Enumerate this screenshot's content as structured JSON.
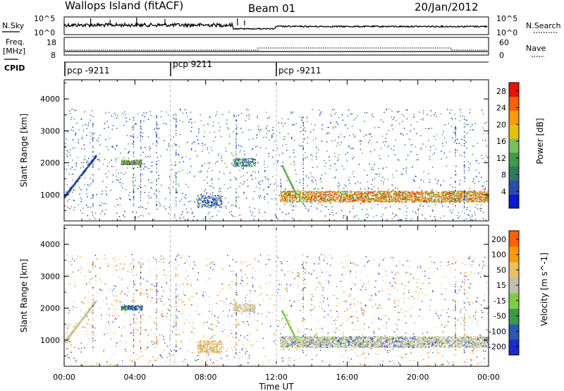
{
  "header": {
    "station": "Wallops Island (fitACF)",
    "beam": "Beam 01",
    "date": "20/Jan/2012"
  },
  "nsky": {
    "label": "N.Sky",
    "ticks": [
      "10^5",
      "10^0"
    ],
    "right_label": "N.Search",
    "right_ticks": [
      "10^5",
      "10^0"
    ]
  },
  "freq": {
    "label_lines": [
      "Freq.",
      "[MHz]"
    ],
    "ticks": [
      "18",
      "8"
    ],
    "right_label": "Nave",
    "right_ticks": [
      "60",
      "0"
    ]
  },
  "cpid": {
    "label": "CPID",
    "segments": [
      {
        "start": 0,
        "label": "pcp -9211"
      },
      {
        "start": 6,
        "label": "pcp 9211"
      },
      {
        "start": 12,
        "label": "pcp -9211"
      }
    ]
  },
  "colors": {
    "power_scale": [
      "#0a18d8",
      "#2a4eb0",
      "#2f7a5a",
      "#3f9a4a",
      "#7ac05a",
      "#e8c000",
      "#ff9a00",
      "#ff6000",
      "#ee1000"
    ],
    "velocity_scale": [
      "#1a2ad0",
      "#2a5ab0",
      "#3a9a48",
      "#7ad040",
      "#c0c0b0",
      "#e8c060",
      "#ff9a00",
      "#ff6000",
      "#e01000"
    ]
  },
  "chart_data": [
    {
      "type": "heatmap",
      "name_shown": "",
      "xlabel": "",
      "ylabel": "Slant Range [km]",
      "x_range_hours": [
        0,
        24
      ],
      "ylim": [
        180,
        4600
      ],
      "yticks": [
        "1000",
        "2000",
        "3000",
        "4000"
      ],
      "colorbar_label": "Power [dB]",
      "colorbar_ticks": [
        "4",
        "8",
        "12",
        "16",
        "20",
        "24",
        "28"
      ],
      "colorbar_range": [
        0,
        30
      ]
    },
    {
      "type": "heatmap",
      "xlabel": "Time UT",
      "ylabel": "Slant Range [km]",
      "x_range_hours": [
        0,
        24
      ],
      "ylim": [
        180,
        4600
      ],
      "yticks": [
        "1000",
        "2000",
        "3000",
        "4000"
      ],
      "xticks": [
        "00:00",
        "04:00",
        "08:00",
        "12:00",
        "16:00",
        "20:00",
        "00:00"
      ],
      "colorbar_label": "Velocity [m s^-1]",
      "colorbar_ticks": [
        "200",
        "100",
        "50",
        "15",
        "-15",
        "-50",
        "-100",
        "-200"
      ]
    }
  ]
}
